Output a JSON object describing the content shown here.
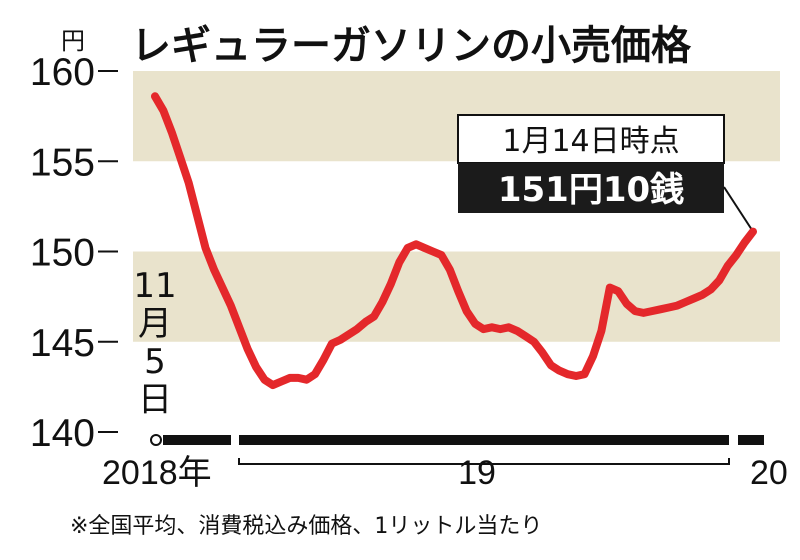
{
  "chart_data": {
    "type": "line",
    "title": "レギュラーガソリンの小売価格",
    "unit": "円",
    "yticks": [
      160,
      155,
      150,
      145,
      140
    ],
    "ylim": [
      140,
      160
    ],
    "bands": [
      [
        155,
        160
      ],
      [
        145,
        150
      ]
    ],
    "start_label": [
      "11",
      "月",
      "5",
      "日"
    ],
    "year_labels": [
      "2018年",
      "19",
      "20"
    ],
    "annotation": {
      "date": "1月14日時点",
      "price": "151円10銭"
    },
    "footnote": "※全国平均、消費税込み価格、1リットル当たり",
    "series": [
      {
        "values": [
          158.6,
          157.8,
          156.6,
          155.2,
          153.8,
          152.0,
          150.2,
          149.0,
          148.0,
          147.0,
          145.8,
          144.6,
          143.6,
          142.9,
          142.6,
          142.8,
          143.0,
          143.0,
          142.9,
          143.2,
          144.0,
          144.9,
          145.1,
          145.4,
          145.7,
          146.1,
          146.4,
          147.2,
          148.2,
          149.4,
          150.2,
          150.4,
          150.2,
          150.0,
          149.8,
          149.0,
          147.8,
          146.7,
          146.0,
          145.7,
          145.8,
          145.7,
          145.8,
          145.6,
          145.3,
          145.0,
          144.4,
          143.7,
          143.4,
          143.2,
          143.1,
          143.2,
          144.2,
          145.6,
          148.0,
          147.8,
          147.1,
          146.7,
          146.6,
          146.7,
          146.8,
          146.9,
          147.0,
          147.2,
          147.4,
          147.6,
          147.9,
          148.4,
          149.2,
          149.8,
          150.5,
          151.1
        ]
      }
    ]
  }
}
